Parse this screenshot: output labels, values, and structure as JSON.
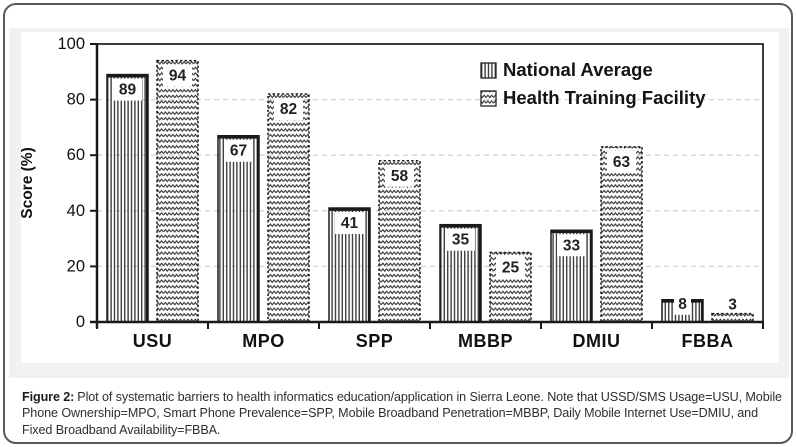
{
  "chart_data": {
    "type": "bar",
    "title": "",
    "categories": [
      "USU",
      "MPO",
      "SPP",
      "MBBP",
      "DMIU",
      "FBBA"
    ],
    "series": [
      {
        "name": "National Average",
        "pattern": "vertical-lines",
        "values": [
          89,
          67,
          41,
          35,
          33,
          8
        ]
      },
      {
        "name": "Health Training Facility",
        "pattern": "zigzag",
        "values": [
          94,
          82,
          58,
          25,
          63,
          3
        ]
      }
    ],
    "xlabel": "",
    "ylabel": "Score (%)",
    "ylim": [
      0,
      100
    ],
    "yticks": [
      0,
      20,
      40,
      60,
      80,
      100
    ],
    "grid": "horizontal dashed at 20/40/60/80",
    "legend_position": "top-right-inside",
    "value_labels": "white boxes near bar tops",
    "colors": {
      "bar_outline": "#1a1a1a",
      "pattern_ink": "#3c3c3c",
      "gridline": "#d4d4d4",
      "axis": "#1a1a1a",
      "plot_bg": "#ffffff",
      "figure_bg": "#f1f1f1",
      "label_text": "#222222"
    }
  },
  "caption": {
    "label": "Figure 2:",
    "text": "Plot of systematic barriers to health informatics education/application in Sierra Leone. Note that USSD/SMS Usage=USU, Mobile Phone Ownership=MPO, Smart Phone Prevalence=SPP, Mobile Broadband Penetration=MBBP, Daily Mobile Internet Use=DMIU, and Fixed Broadband Availability=FBBA."
  }
}
